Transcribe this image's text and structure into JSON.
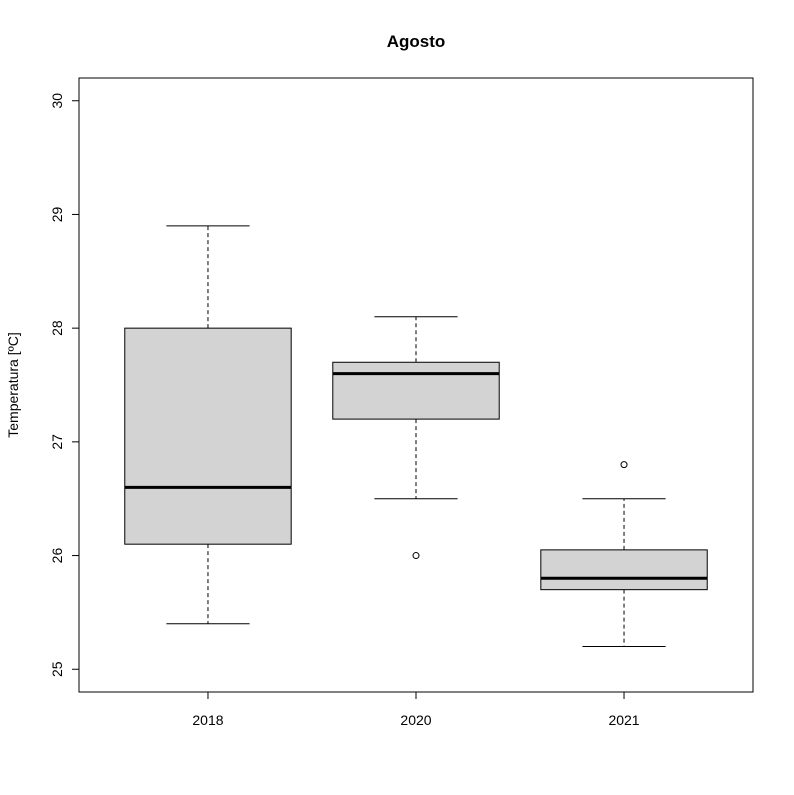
{
  "chart_data": {
    "type": "boxplot",
    "title": "Agosto",
    "xlabel": "",
    "ylabel": "Temperatura [ºC]",
    "ylim": [
      24.8,
      30.2
    ],
    "y_ticks": [
      25,
      26,
      27,
      28,
      29,
      30
    ],
    "categories": [
      "2018",
      "2020",
      "2021"
    ],
    "boxes": [
      {
        "category": "2018",
        "whisker_low": 25.4,
        "q1": 26.1,
        "median": 26.6,
        "q3": 28.0,
        "whisker_high": 28.9,
        "outliers": []
      },
      {
        "category": "2020",
        "whisker_low": 26.5,
        "q1": 27.2,
        "median": 27.6,
        "q3": 27.7,
        "whisker_high": 28.1,
        "outliers": [
          26.0
        ]
      },
      {
        "category": "2021",
        "whisker_low": 25.2,
        "q1": 25.7,
        "median": 25.8,
        "q3": 26.05,
        "whisker_high": 26.5,
        "outliers": [
          26.8
        ]
      }
    ],
    "box_fill": "#d3d3d3",
    "line_color": "#000000",
    "grid": false,
    "legend": "none"
  }
}
